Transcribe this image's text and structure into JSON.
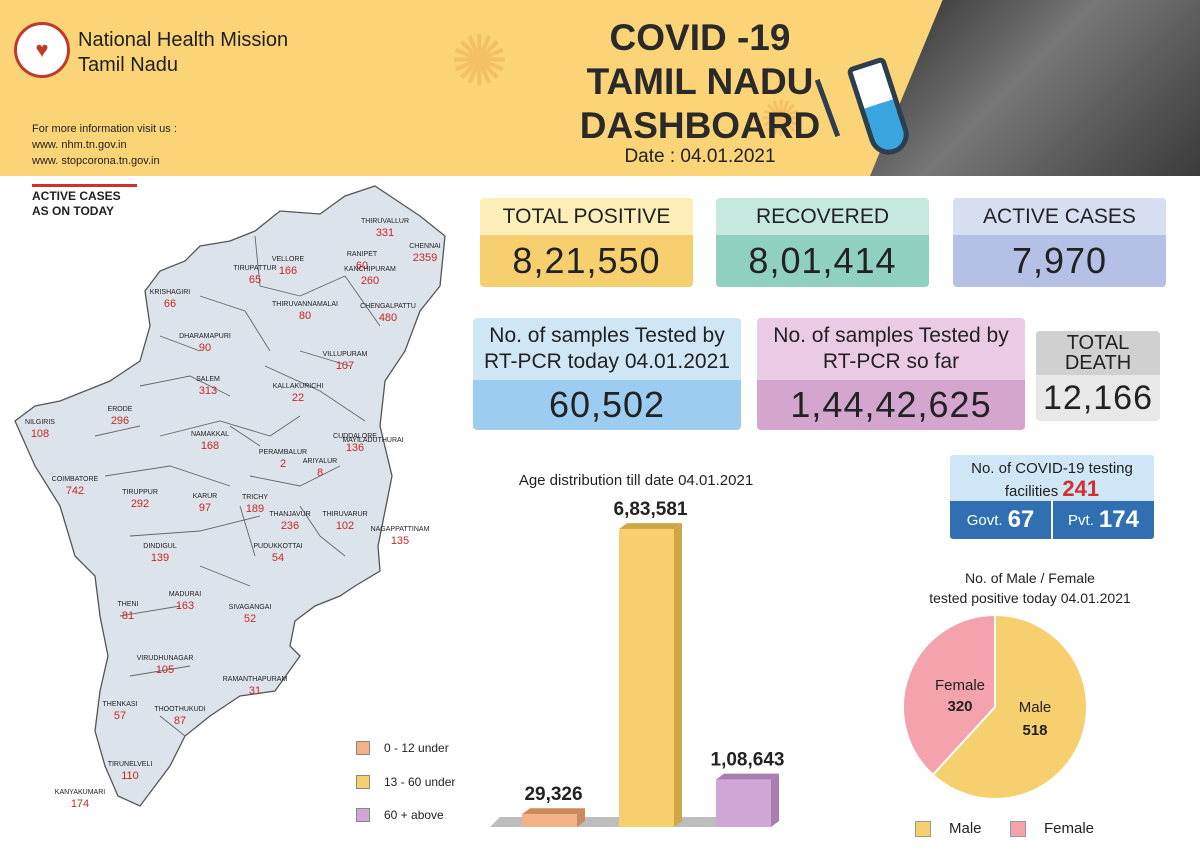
{
  "header": {
    "org_line1": "National Health Mission",
    "org_line2": "Tamil Nadu",
    "info_label": "For more information visit us :",
    "link1": "www. nhm.tn.gov.in",
    "link2": "www. stopcorona.tn.gov.in",
    "title_line1": "COVID -19",
    "title_line2": "TAMIL NADU",
    "title_line3": "DASHBOARD",
    "date": "Date : 04.01.2021"
  },
  "map": {
    "title_line1": "ACTIVE CASES",
    "title_line2": "AS ON TODAY",
    "districts": [
      {
        "name": "THIRUVALLUR",
        "value": "331"
      },
      {
        "name": "CHENNAI",
        "value": "2359"
      },
      {
        "name": "RANIPET",
        "value": "60"
      },
      {
        "name": "VELLORE",
        "value": "166"
      },
      {
        "name": "KANCHIPURAM",
        "value": "260"
      },
      {
        "name": "CHENGALPATTU",
        "value": "480"
      },
      {
        "name": "TIRUPATTUR",
        "value": "65"
      },
      {
        "name": "KRISHAGIRI",
        "value": "66"
      },
      {
        "name": "THIRUVANNAMALAI",
        "value": "80"
      },
      {
        "name": "DHARAMAPURI",
        "value": "90"
      },
      {
        "name": "VILLUPURAM",
        "value": "107"
      },
      {
        "name": "SALEM",
        "value": "313"
      },
      {
        "name": "KALLAKURICHI",
        "value": "22"
      },
      {
        "name": "ERODE",
        "value": "296"
      },
      {
        "name": "NILGIRIS",
        "value": "108"
      },
      {
        "name": "NAMAKKAL",
        "value": "168"
      },
      {
        "name": "CUDDALORE",
        "value": "136"
      },
      {
        "name": "PERAMBALUR",
        "value": "2"
      },
      {
        "name": "ARIYALUR",
        "value": "8"
      },
      {
        "name": "MAYILADUTHURAI",
        "value": ""
      },
      {
        "name": "COIMBATORE",
        "value": "742"
      },
      {
        "name": "TIRUPPUR",
        "value": "292"
      },
      {
        "name": "KARUR",
        "value": "97"
      },
      {
        "name": "TRICHY",
        "value": "189"
      },
      {
        "name": "THANJAVUR",
        "value": "236"
      },
      {
        "name": "THIRUVARUR",
        "value": "102"
      },
      {
        "name": "NAGAPPATTINAM",
        "value": "135"
      },
      {
        "name": "DINDIGUL",
        "value": "139"
      },
      {
        "name": "PUDUKKOTTAI",
        "value": "54"
      },
      {
        "name": "THENI",
        "value": "81"
      },
      {
        "name": "MADURAI",
        "value": "163"
      },
      {
        "name": "SIVAGANGAI",
        "value": "52"
      },
      {
        "name": "VIRUDHUNAGAR",
        "value": "105"
      },
      {
        "name": "RAMANTHAPURAM",
        "value": "31"
      },
      {
        "name": "THENKASI",
        "value": "57"
      },
      {
        "name": "THOOTHUKUDI",
        "value": "87"
      },
      {
        "name": "TIRUNELVELI",
        "value": "110"
      },
      {
        "name": "KANYAKUMARI",
        "value": "174"
      }
    ]
  },
  "stats": {
    "total_positive": {
      "label": "TOTAL POSITIVE",
      "value": "8,21,550"
    },
    "recovered": {
      "label": "RECOVERED",
      "value": "8,01,414"
    },
    "active": {
      "label": "ACTIVE CASES",
      "value": "7,970"
    },
    "tested_today": {
      "label_line1": "No. of samples Tested by",
      "label_line2": "RT-PCR today 04.01.2021",
      "value": "60,502"
    },
    "tested_so_far": {
      "label_line1": "No. of samples Tested by",
      "label_line2": "RT-PCR so far",
      "value": "1,44,42,625"
    },
    "total_death": {
      "label_line1": "TOTAL",
      "label_line2": "DEATH",
      "value": "12,166"
    }
  },
  "facilities": {
    "label_line1": "No. of COVID-19 testing",
    "label_line2": "facilities",
    "total": "241",
    "govt_label": "Govt.",
    "govt_value": "67",
    "pvt_label": "Pvt.",
    "pvt_value": "174"
  },
  "gender": {
    "title_line1": "No. of Male  / Female",
    "title_line2": "tested positive today 04.01.2021",
    "male_label": "Male",
    "male_value": "518",
    "female_label": "Female",
    "female_value": "320",
    "legend_male": "Male",
    "legend_female": "Female"
  },
  "chart_data": [
    {
      "type": "bar",
      "title": "Age distribution till date 04.01.2021",
      "categories": [
        "0 - 12 under",
        "13 - 60 under",
        "60 + above"
      ],
      "values": [
        29326,
        683581,
        108643
      ],
      "labels": [
        "29,326",
        "6,83,581",
        "1,08,643"
      ],
      "colors": [
        "#f4b183",
        "#f6cf6f",
        "#cfa6d6"
      ],
      "ylim": [
        0,
        700000
      ]
    },
    {
      "type": "pie",
      "title": "No. of Male / Female tested positive today 04.01.2021",
      "categories": [
        "Male",
        "Female"
      ],
      "values": [
        518,
        320
      ],
      "colors": [
        "#f6cf6f",
        "#f4a3ad"
      ]
    }
  ]
}
